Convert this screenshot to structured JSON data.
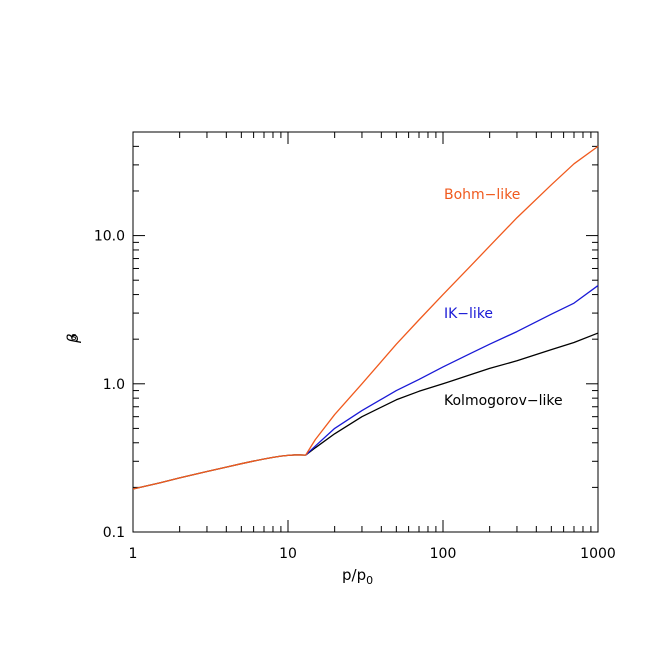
{
  "chart_data": {
    "type": "line",
    "title": "",
    "xlabel": "p/p",
    "xlabel_sub": "0",
    "ylabel": "β",
    "ylabel_sub": "s",
    "x_scale": "log",
    "y_scale": "log",
    "xlim": [
      1,
      1000
    ],
    "ylim": [
      0.1,
      50
    ],
    "grid": false,
    "legend": "none",
    "x_ticks": [
      {
        "value": 1,
        "label": "1"
      },
      {
        "value": 10,
        "label": "10"
      },
      {
        "value": 100,
        "label": "100"
      },
      {
        "value": 1000,
        "label": "1000"
      }
    ],
    "y_ticks": [
      {
        "value": 0.1,
        "label": "0.1"
      },
      {
        "value": 1,
        "label": "1.0"
      },
      {
        "value": 10,
        "label": "10.0"
      }
    ],
    "shared": {
      "color": "#000000",
      "x": [
        1,
        1.5,
        2,
        3,
        4,
        5,
        6,
        7,
        8,
        9,
        10,
        11,
        12,
        13
      ],
      "y": [
        0.195,
        0.215,
        0.232,
        0.256,
        0.274,
        0.289,
        0.301,
        0.311,
        0.319,
        0.325,
        0.329,
        0.331,
        0.331,
        0.33
      ]
    },
    "series": [
      {
        "name": "Bohm−like",
        "color": "#f05a1e",
        "x": [
          13,
          15,
          20,
          30,
          50,
          70,
          100,
          150,
          200,
          300,
          500,
          700,
          1000
        ],
        "y": [
          0.33,
          0.42,
          0.62,
          1.0,
          1.85,
          2.7,
          4.0,
          6.2,
          8.5,
          13.2,
          22.0,
          30.5,
          40.0
        ]
      },
      {
        "name": "IK−like",
        "color": "#1a1ad6",
        "x": [
          13,
          15,
          20,
          30,
          50,
          70,
          100,
          150,
          200,
          300,
          500,
          700,
          1000
        ],
        "y": [
          0.33,
          0.38,
          0.5,
          0.66,
          0.9,
          1.07,
          1.3,
          1.6,
          1.85,
          2.25,
          2.95,
          3.5,
          4.6
        ]
      },
      {
        "name": "Kolmogorov−like",
        "color": "#000000",
        "x": [
          13,
          15,
          20,
          30,
          50,
          70,
          100,
          150,
          200,
          300,
          500,
          700,
          1000
        ],
        "y": [
          0.33,
          0.37,
          0.46,
          0.6,
          0.78,
          0.89,
          1.0,
          1.15,
          1.27,
          1.43,
          1.7,
          1.9,
          2.2
        ]
      }
    ]
  }
}
